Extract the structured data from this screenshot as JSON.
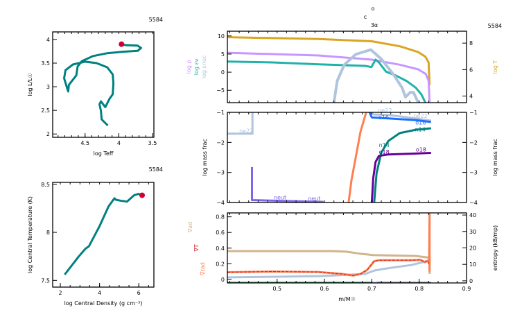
{
  "model_number": "5584",
  "top_markers": [
    "o",
    "c",
    "3α"
  ],
  "chart_data": [
    {
      "id": "hr",
      "type": "line",
      "xlabel": "log Teff",
      "ylabel": "log L/L☉",
      "xlim": [
        4.98,
        3.48
      ],
      "ylim": [
        1.93,
        4.16
      ],
      "xticks": [
        4.5,
        4,
        3.5
      ],
      "yticks": [
        2,
        2.5,
        3,
        3.5,
        4
      ],
      "ytick_labels": [
        "2",
        "2.5",
        "3",
        "3.5",
        "4"
      ],
      "series": [
        {
          "color": "#008080",
          "x": [
            4.163,
            4.255,
            4.265,
            4.286,
            4.265,
            4.2,
            4.14,
            4.09,
            4.08,
            4.09,
            4.17,
            4.33,
            4.5,
            4.68,
            4.79,
            4.81,
            4.77,
            4.75,
            4.74,
            4.69,
            4.63,
            4.61,
            4.55,
            4.38,
            4.17,
            3.94,
            3.72,
            3.67,
            3.72,
            3.9,
            3.96
          ],
          "y": [
            2.18,
            2.31,
            2.49,
            2.63,
            2.69,
            2.57,
            2.74,
            2.84,
            3.07,
            3.26,
            3.41,
            3.5,
            3.53,
            3.47,
            3.35,
            3.18,
            2.99,
            2.9,
            3.04,
            3.13,
            3.24,
            3.43,
            3.54,
            3.65,
            3.71,
            3.74,
            3.76,
            3.82,
            3.87,
            3.88,
            3.9
          ]
        }
      ],
      "current_point": {
        "x": 3.96,
        "y": 3.9,
        "color": "#cc0033"
      }
    },
    {
      "id": "center",
      "type": "line",
      "xlabel": "log Central Density (g cm⁻³)",
      "ylabel": "log Central Temperature (K)",
      "xlim": [
        1.61,
        6.77
      ],
      "ylim": [
        7.43,
        8.52
      ],
      "xticks": [
        2,
        4,
        6
      ],
      "yticks": [
        7.5,
        8,
        8.5
      ],
      "ytick_labels": [
        "7.5",
        "8",
        "8.5"
      ],
      "series": [
        {
          "color": "#008080",
          "x": [
            2.22,
            2.93,
            3.28,
            3.46,
            3.99,
            4.46,
            4.76,
            4.82,
            5.05,
            5.4,
            5.76,
            5.99,
            6.17
          ],
          "y": [
            7.56,
            7.746,
            7.83,
            7.855,
            8.06,
            8.27,
            8.355,
            8.34,
            8.33,
            8.32,
            8.386,
            8.4,
            8.386
          ]
        }
      ],
      "current_point": {
        "x": 6.17,
        "y": 8.386,
        "color": "#cc0033"
      }
    },
    {
      "id": "profile-top",
      "type": "line",
      "xlim": [
        0.395,
        0.9
      ],
      "ylim": [
        -8.4,
        11.3
      ],
      "ylim_right": [
        3.5,
        8.9
      ],
      "yticks": [
        -5,
        0,
        5,
        10
      ],
      "yticks_right": [
        4,
        6,
        8
      ],
      "ylabels_left": [
        {
          "text": "log ρ",
          "color": "#c896ff"
        },
        {
          "text": "log εν",
          "color": "#20b2aa"
        },
        {
          "text": "log εnuc",
          "color": "#b0c4de"
        }
      ],
      "ylabel_right": {
        "text": "log T",
        "color": "#daa520"
      },
      "series": [
        {
          "name": "log T",
          "axis": "right",
          "color": "#daa520",
          "width": 3,
          "x": [
            0.395,
            0.588,
            0.7,
            0.759,
            0.798,
            0.813,
            0.82,
            0.822
          ],
          "y": [
            8.45,
            8.31,
            8.14,
            7.76,
            7.32,
            6.97,
            6.54,
            4.82
          ]
        },
        {
          "name": "log ρ",
          "axis": "left",
          "color": "#c896ff",
          "width": 3,
          "x": [
            0.395,
            0.588,
            0.7,
            0.759,
            0.798,
            0.814,
            0.82,
            0.822
          ],
          "y": [
            5.36,
            4.6,
            3.45,
            2.06,
            0.78,
            -0.5,
            -2.4,
            -8.4
          ]
        },
        {
          "name": "log εν",
          "axis": "left",
          "color": "#20b2aa",
          "width": 3,
          "x": [
            0.395,
            0.49,
            0.588,
            0.686,
            0.699,
            0.708,
            0.715,
            0.73,
            0.749,
            0.773,
            0.793,
            0.805,
            0.813
          ],
          "y": [
            2.94,
            2.69,
            2.18,
            1.74,
            1.41,
            3.45,
            2.69,
            0.15,
            -0.8,
            -2.4,
            -4.3,
            -6.2,
            -8.4
          ]
        },
        {
          "name": "log εnuc",
          "axis": "left",
          "color": "#b0c4de",
          "width": 4,
          "x": [
            0.62,
            0.627,
            0.642,
            0.666,
            0.686,
            0.698,
            0.72,
            0.745,
            0.764,
            0.771,
            0.781,
            0.788,
            0.798
          ],
          "y": [
            -8.4,
            -2.4,
            2.06,
            4.92,
            5.74,
            6.2,
            3.65,
            -0.5,
            -4.3,
            -6.85,
            -5.57,
            -5.57,
            -8.4
          ]
        }
      ]
    },
    {
      "id": "profile-mid",
      "type": "line",
      "xlim": [
        0.395,
        0.9
      ],
      "ylim": [
        -4,
        -1
      ],
      "yticks": [
        -4,
        -3,
        -2,
        -1
      ],
      "ylabel": "log mass frac",
      "ylabel_right": "log mass frac",
      "series": [
        {
          "name": "ne22",
          "color": "#b0c4de",
          "x": [
            0.395,
            0.448,
            0.448
          ],
          "y": [
            -1.71,
            -1.71,
            -1.0
          ]
        },
        {
          "name": "ne22",
          "color": "#b0c4de",
          "x": [
            0.695,
            0.704,
            0.735,
            0.793,
            0.825
          ],
          "y": [
            -1.0,
            -1.07,
            -1.09,
            -1.2,
            -1.28
          ]
        },
        {
          "name": "o16",
          "color": "#1e6fff",
          "x": [
            0.695,
            0.7,
            0.735,
            0.793,
            0.825
          ],
          "y": [
            -1.0,
            -1.17,
            -1.2,
            -1.26,
            -1.32
          ]
        },
        {
          "name": "n14",
          "color": "#008080",
          "x": [
            0.705,
            0.71,
            0.72,
            0.735,
            0.759,
            0.793,
            0.825
          ],
          "y": [
            -4,
            -3.03,
            -2.34,
            -1.95,
            -1.69,
            -1.58,
            -1.53
          ]
        },
        {
          "name": "o18",
          "color": "#660099",
          "x": [
            0.7,
            0.703,
            0.708,
            0.715,
            0.735,
            0.793,
            0.825
          ],
          "y": [
            -4,
            -3.19,
            -2.65,
            -2.45,
            -2.4,
            -2.37,
            -2.35
          ]
        },
        {
          "color": "#ff7f50",
          "x": [
            0.651,
            0.657,
            0.667,
            0.676,
            0.688
          ],
          "y": [
            -4,
            -3.26,
            -2.42,
            -1.65,
            -1.0
          ]
        },
        {
          "name": "neut",
          "color": "#7b68ee",
          "x": [
            0.447,
            0.447,
            0.515,
            0.598
          ],
          "y": [
            -2.82,
            -3.92,
            -3.95,
            -3.98
          ]
        }
      ],
      "labels": [
        {
          "text": "ne22",
          "color": "#b0c4de",
          "x": 0.42,
          "y": -1.68
        },
        {
          "text": "ne22",
          "color": "#b0c4de",
          "x": 0.713,
          "y": -1.0
        },
        {
          "text": "o16",
          "color": "#1e6fff",
          "x": 0.714,
          "y": -1.12
        },
        {
          "text": "ne22",
          "color": "#b0c4de",
          "x": 0.788,
          "y": -1.18
        },
        {
          "text": "o16",
          "color": "#1e6fff",
          "x": 0.792,
          "y": -1.08
        },
        {
          "text": "n14",
          "color": "#008080",
          "x": 0.791,
          "y": -1.47
        },
        {
          "text": "n14",
          "color": "#008080",
          "x": 0.715,
          "y": -2.15
        },
        {
          "text": "o18",
          "color": "#660099",
          "x": 0.715,
          "y": -2.38
        },
        {
          "text": "o18",
          "color": "#660099",
          "x": 0.793,
          "y": -2.3
        },
        {
          "text": "neut",
          "color": "#7b68ee",
          "x": 0.493,
          "y": -3.9
        },
        {
          "text": "neut",
          "color": "#7b68ee",
          "x": 0.565,
          "y": -3.93
        }
      ]
    },
    {
      "id": "profile-bottom",
      "type": "line",
      "xlim": [
        0.395,
        0.9
      ],
      "ylim": [
        -0.045,
        0.85
      ],
      "ylim_right": [
        -1.3,
        41.3
      ],
      "xticks": [
        0.5,
        0.6,
        0.7,
        0.8,
        0.9
      ],
      "yticks": [
        0,
        0.2,
        0.4,
        0.6,
        0.8
      ],
      "yticks_right": [
        0,
        10,
        20,
        30,
        40
      ],
      "xlabel": "m/M☉",
      "ylabels_left": [
        {
          "text": "∇ad",
          "color": "#d2b48c"
        },
        {
          "text": "∇T",
          "color": "#cc2222"
        },
        {
          "text": "∇rad",
          "color": "#ff7f50"
        }
      ],
      "ylabel_right": "entropy (kB/mp)",
      "series": [
        {
          "name": "∇ad",
          "axis": "left",
          "color": "#d2b48c",
          "width": 3,
          "x": [
            0.395,
            0.617,
            0.646,
            0.674,
            0.704,
            0.793,
            0.818,
            0.822,
            0.822
          ],
          "y": [
            0.362,
            0.362,
            0.355,
            0.33,
            0.31,
            0.3,
            0.28,
            0.28,
            0.07
          ]
        },
        {
          "name": "entropy",
          "axis": "right",
          "color": "#b0c4de",
          "width": 3,
          "x": [
            0.395,
            0.588,
            0.686,
            0.706,
            0.735,
            0.783,
            0.817,
            0.822
          ],
          "y": [
            2.1,
            2.8,
            4.2,
            6.3,
            7.7,
            9.6,
            12,
            12
          ]
        },
        {
          "name": "∇rad",
          "axis": "left",
          "color": "#ff7f50",
          "width": 3,
          "x": [
            0.395,
            0.49,
            0.588,
            0.637,
            0.661,
            0.676,
            0.69,
            0.705,
            0.715,
            0.783,
            0.803,
            0.812,
            0.818,
            0.821,
            0.822,
            0.822
          ],
          "y": [
            0.092,
            0.1,
            0.095,
            0.07,
            0.05,
            0.07,
            0.12,
            0.233,
            0.245,
            0.245,
            0.25,
            0.22,
            0.24,
            0.2,
            0.85,
            0.1
          ]
        },
        {
          "name": "∇T",
          "axis": "left",
          "color": "#cc2222",
          "width": 1,
          "dash": true,
          "x": [
            0.395,
            0.49,
            0.588,
            0.637,
            0.661,
            0.676,
            0.69,
            0.705,
            0.715,
            0.783,
            0.803,
            0.812,
            0.818,
            0.821
          ],
          "y": [
            0.092,
            0.1,
            0.095,
            0.07,
            0.05,
            0.07,
            0.12,
            0.233,
            0.245,
            0.245,
            0.25,
            0.22,
            0.24,
            0.2
          ]
        },
        {
          "axis": "left",
          "color": "#2e8b57",
          "width": 2,
          "x": [
            0.395,
            0.7
          ],
          "y": [
            -0.04,
            -0.04
          ]
        },
        {
          "axis": "left",
          "color": "#c896ff",
          "width": 2,
          "x": [
            0.7,
            0.71
          ],
          "y": [
            -0.04,
            -0.04
          ]
        },
        {
          "axis": "left",
          "color": "#708090",
          "width": 2,
          "x": [
            0.71,
            0.825
          ],
          "y": [
            -0.04,
            -0.04
          ]
        }
      ]
    }
  ]
}
